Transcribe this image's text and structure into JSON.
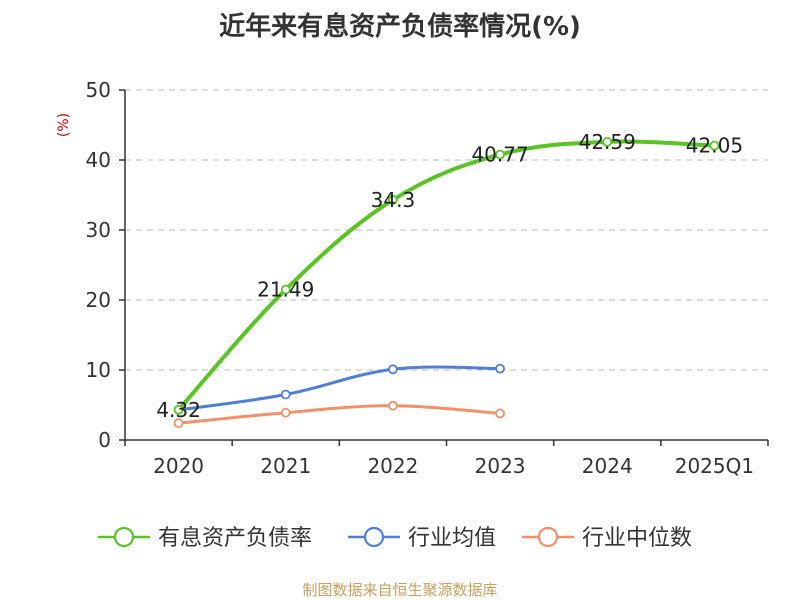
{
  "title": "近年来有息资产负债率情况(%)",
  "source": "制图数据来自恒生聚源数据库",
  "colors": {
    "series_debt": "#5ac425",
    "series_avg": "#4e7fd9",
    "series_median": "#f39069",
    "ylabel": "#cc0000",
    "source": "#c8a060",
    "grid": "#bbbbbb",
    "axis": "#333333"
  },
  "chart_data": {
    "type": "line",
    "title": "近年来有息资产负债率情况(%)",
    "xlabel": "",
    "ylabel": "(%)",
    "categories": [
      "2020",
      "2021",
      "2022",
      "2023",
      "2024",
      "2025Q1"
    ],
    "yticks": [
      0,
      10,
      20,
      30,
      40,
      50
    ],
    "ylim": [
      0,
      50
    ],
    "grid": true,
    "legend_position": "bottom",
    "series": [
      {
        "name": "有息资产负债率",
        "values": [
          4.32,
          21.49,
          34.3,
          40.77,
          42.59,
          42.05
        ],
        "labels": [
          "4.32",
          "21.49",
          "34.3",
          "40.77",
          "42.59",
          "42.05"
        ]
      },
      {
        "name": "行业均值",
        "values": [
          4.3,
          6.5,
          10.1,
          10.2,
          null,
          null
        ]
      },
      {
        "name": "行业中位数",
        "values": [
          2.4,
          3.9,
          4.9,
          3.8,
          null,
          null
        ]
      }
    ]
  }
}
